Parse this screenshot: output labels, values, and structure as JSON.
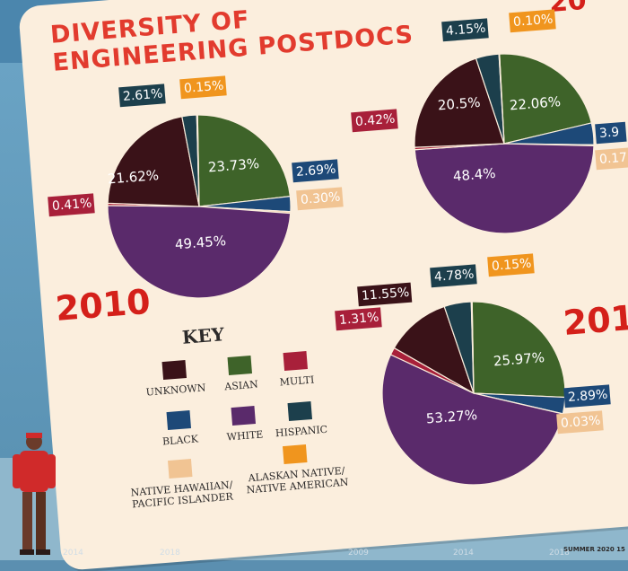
{
  "title_lines": [
    "DIVERSITY OF",
    "ENGINEERING POSTDOCS"
  ],
  "years": {
    "y2010": "2010",
    "y2020_partial": "201",
    "y2015_partial": "20"
  },
  "key": {
    "title": "KEY",
    "items": [
      {
        "label": "UNKNOWN",
        "color": "#3a1218"
      },
      {
        "label": "ASIAN",
        "color": "#3e6329"
      },
      {
        "label": "MULTI",
        "color": "#a8203a"
      },
      {
        "label": "BLACK",
        "color": "#1d4978"
      },
      {
        "label": "WHITE",
        "color": "#5a2a6b"
      },
      {
        "label": "HISPANIC",
        "color": "#1c3f4c"
      },
      {
        "label": "NATIVE HAWAIIAN/ PACIFIC ISLANDER",
        "color": "#f1c493"
      },
      {
        "label": "ALASKAN NATIVE/ NATIVE AMERICAN",
        "color": "#f0951e"
      }
    ]
  },
  "chart_data": [
    {
      "type": "pie",
      "year": "2010",
      "slices": [
        {
          "category": "Asian",
          "value": 23.73,
          "label": "23.73%"
        },
        {
          "category": "Black",
          "value": 2.69,
          "label": "2.69%"
        },
        {
          "category": "Native Hawaiian/Pacific Islander",
          "value": 0.3,
          "label": "0.30%"
        },
        {
          "category": "White",
          "value": 49.45,
          "label": "49.45%"
        },
        {
          "category": "Multi",
          "value": 0.41,
          "label": "0.41%"
        },
        {
          "category": "Unknown",
          "value": 21.62,
          "label": "21.62%"
        },
        {
          "category": "Hispanic",
          "value": 2.61,
          "label": "2.61%"
        },
        {
          "category": "Alaskan Native/Native American",
          "value": 0.15,
          "label": "0.15%"
        }
      ]
    },
    {
      "type": "pie",
      "year": "",
      "slices": [
        {
          "category": "Asian",
          "value": 22.06,
          "label": "22.06%"
        },
        {
          "category": "Black",
          "value": 3.9,
          "label": "3.9"
        },
        {
          "category": "Native Hawaiian/Pacific Islander",
          "value": 0.17,
          "label": "0.17"
        },
        {
          "category": "White",
          "value": 48.4,
          "label": "48.4%"
        },
        {
          "category": "Multi",
          "value": 0.42,
          "label": "0.42%"
        },
        {
          "category": "Unknown",
          "value": 20.5,
          "label": "20.5%"
        },
        {
          "category": "Hispanic",
          "value": 4.15,
          "label": "4.15%"
        },
        {
          "category": "Alaskan Native/Native American",
          "value": 0.1,
          "label": "0.10%"
        }
      ]
    },
    {
      "type": "pie",
      "year": "",
      "slices": [
        {
          "category": "Asian",
          "value": 25.97,
          "label": "25.97%"
        },
        {
          "category": "Black",
          "value": 2.89,
          "label": "2.89%"
        },
        {
          "category": "Native Hawaiian/Pacific Islander",
          "value": 0.03,
          "label": "0.03%"
        },
        {
          "category": "White",
          "value": 53.27,
          "label": "53.27%"
        },
        {
          "category": "Multi",
          "value": 1.31,
          "label": "1.31%"
        },
        {
          "category": "Unknown",
          "value": 11.55,
          "label": "11.55%"
        },
        {
          "category": "Hispanic",
          "value": 4.78,
          "label": "4.78%"
        },
        {
          "category": "Alaskan Native/Native American",
          "value": 0.15,
          "label": "0.15%"
        }
      ]
    }
  ],
  "footer": "SUMMER 2020  15",
  "timeline_ticks": [
    "2014",
    "2018",
    "2009",
    "2014",
    "2018"
  ]
}
